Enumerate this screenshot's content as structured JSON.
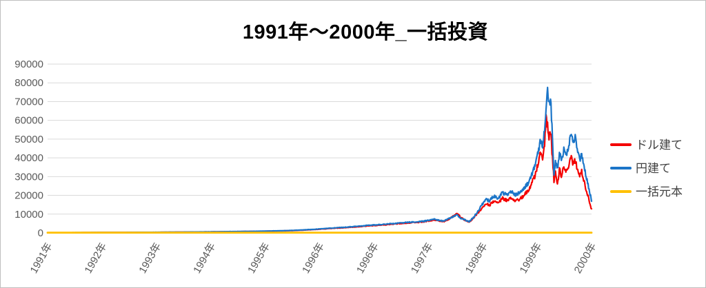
{
  "title": "1991年〜2000年_一括投資",
  "colors": {
    "background": "#FFFFFF",
    "border": "#BFBFBF",
    "gridline": "#D9D9D9",
    "axis_text": "#595959",
    "legend_text": "#404040",
    "title_text": "#000000",
    "dollar": "#F40000",
    "yen": "#1B75C8",
    "principal": "#FFC000"
  },
  "chart_data": {
    "type": "line",
    "title": "1991年〜2000年_一括投資",
    "grid": "horizontal",
    "legend_position": "right",
    "ylim": [
      0,
      90000
    ],
    "y_ticks": [
      0,
      10000,
      20000,
      30000,
      40000,
      50000,
      60000,
      70000,
      80000,
      90000
    ],
    "x_ticks": [
      "1991年",
      "1992年",
      "1993年",
      "1994年",
      "1995年",
      "1996年",
      "1996年",
      "1997年",
      "1998年",
      "1999年",
      "2000年"
    ],
    "x_is_fraction_of_range": true,
    "series": [
      {
        "id": "dollar",
        "name": "ドル建て",
        "color": "#F40000",
        "width": 2.2,
        "noise": 0.045,
        "points": [
          [
            0.0,
            120
          ],
          [
            0.01,
            150
          ],
          [
            0.02,
            100
          ],
          [
            0.035,
            160
          ],
          [
            0.05,
            140
          ],
          [
            0.07,
            180
          ],
          [
            0.09,
            200
          ],
          [
            0.11,
            220
          ],
          [
            0.13,
            240
          ],
          [
            0.15,
            265
          ],
          [
            0.17,
            290
          ],
          [
            0.19,
            310
          ],
          [
            0.21,
            350
          ],
          [
            0.23,
            385
          ],
          [
            0.25,
            420
          ],
          [
            0.27,
            470
          ],
          [
            0.29,
            520
          ],
          [
            0.31,
            570
          ],
          [
            0.33,
            640
          ],
          [
            0.35,
            700
          ],
          [
            0.37,
            780
          ],
          [
            0.39,
            850
          ],
          [
            0.41,
            950
          ],
          [
            0.43,
            1080
          ],
          [
            0.45,
            1220
          ],
          [
            0.47,
            1500
          ],
          [
            0.49,
            1780
          ],
          [
            0.5,
            1950
          ],
          [
            0.515,
            2250
          ],
          [
            0.53,
            2500
          ],
          [
            0.545,
            2750
          ],
          [
            0.56,
            3100
          ],
          [
            0.575,
            3350
          ],
          [
            0.59,
            3750
          ],
          [
            0.605,
            4000
          ],
          [
            0.62,
            4300
          ],
          [
            0.635,
            4700
          ],
          [
            0.65,
            5000
          ],
          [
            0.665,
            5400
          ],
          [
            0.68,
            5600
          ],
          [
            0.695,
            6100
          ],
          [
            0.705,
            6600
          ],
          [
            0.712,
            7000
          ],
          [
            0.72,
            6400
          ],
          [
            0.728,
            6000
          ],
          [
            0.738,
            7400
          ],
          [
            0.748,
            9200
          ],
          [
            0.753,
            10200
          ],
          [
            0.76,
            8200
          ],
          [
            0.768,
            6600
          ],
          [
            0.775,
            5600
          ],
          [
            0.783,
            7800
          ],
          [
            0.792,
            11000
          ],
          [
            0.8,
            13800
          ],
          [
            0.806,
            15800
          ],
          [
            0.812,
            14600
          ],
          [
            0.82,
            16800
          ],
          [
            0.828,
            15800
          ],
          [
            0.836,
            18500
          ],
          [
            0.844,
            17300
          ],
          [
            0.852,
            18800
          ],
          [
            0.86,
            17200
          ],
          [
            0.868,
            18000
          ],
          [
            0.875,
            19800
          ],
          [
            0.882,
            22000
          ],
          [
            0.889,
            25500
          ],
          [
            0.896,
            30500
          ],
          [
            0.902,
            37000
          ],
          [
            0.906,
            42000
          ],
          [
            0.91,
            39000
          ],
          [
            0.9135,
            47000
          ],
          [
            0.916,
            61000
          ],
          [
            0.919,
            58000
          ],
          [
            0.922,
            50000
          ],
          [
            0.9245,
            55000
          ],
          [
            0.928,
            40000
          ],
          [
            0.931,
            27500
          ],
          [
            0.934,
            33000
          ],
          [
            0.937,
            24500
          ],
          [
            0.941,
            33500
          ],
          [
            0.945,
            30500
          ],
          [
            0.949,
            35000
          ],
          [
            0.953,
            32500
          ],
          [
            0.958,
            36500
          ],
          [
            0.962,
            40000
          ],
          [
            0.966,
            37000
          ],
          [
            0.97,
            38500
          ],
          [
            0.974,
            33500
          ],
          [
            0.978,
            30000
          ],
          [
            0.982,
            33000
          ],
          [
            0.986,
            27500
          ],
          [
            0.99,
            23000
          ],
          [
            0.994,
            19000
          ],
          [
            0.997,
            15500
          ],
          [
            1.0,
            12500
          ]
        ]
      },
      {
        "id": "yen",
        "name": "円建て",
        "color": "#1B75C8",
        "width": 2.2,
        "noise": 0.045,
        "points": [
          [
            0.0,
            120
          ],
          [
            0.01,
            90
          ],
          [
            0.02,
            160
          ],
          [
            0.035,
            140
          ],
          [
            0.05,
            170
          ],
          [
            0.07,
            190
          ],
          [
            0.09,
            210
          ],
          [
            0.11,
            230
          ],
          [
            0.13,
            260
          ],
          [
            0.15,
            280
          ],
          [
            0.17,
            310
          ],
          [
            0.19,
            330
          ],
          [
            0.21,
            370
          ],
          [
            0.23,
            410
          ],
          [
            0.25,
            450
          ],
          [
            0.27,
            500
          ],
          [
            0.29,
            550
          ],
          [
            0.31,
            600
          ],
          [
            0.33,
            680
          ],
          [
            0.35,
            740
          ],
          [
            0.37,
            820
          ],
          [
            0.39,
            900
          ],
          [
            0.41,
            1000
          ],
          [
            0.43,
            1150
          ],
          [
            0.45,
            1300
          ],
          [
            0.47,
            1600
          ],
          [
            0.49,
            1900
          ],
          [
            0.5,
            2100
          ],
          [
            0.515,
            2400
          ],
          [
            0.53,
            2700
          ],
          [
            0.545,
            2950
          ],
          [
            0.56,
            3300
          ],
          [
            0.575,
            3600
          ],
          [
            0.59,
            4000
          ],
          [
            0.605,
            4300
          ],
          [
            0.62,
            4600
          ],
          [
            0.635,
            5000
          ],
          [
            0.65,
            5300
          ],
          [
            0.665,
            5700
          ],
          [
            0.68,
            5900
          ],
          [
            0.695,
            6400
          ],
          [
            0.705,
            6900
          ],
          [
            0.712,
            7300
          ],
          [
            0.72,
            6700
          ],
          [
            0.728,
            6300
          ],
          [
            0.738,
            7600
          ],
          [
            0.748,
            9000
          ],
          [
            0.753,
            9500
          ],
          [
            0.76,
            7800
          ],
          [
            0.768,
            6800
          ],
          [
            0.775,
            6000
          ],
          [
            0.783,
            8200
          ],
          [
            0.792,
            12000
          ],
          [
            0.8,
            15500
          ],
          [
            0.806,
            18200
          ],
          [
            0.812,
            16800
          ],
          [
            0.82,
            19500
          ],
          [
            0.828,
            18300
          ],
          [
            0.836,
            21500
          ],
          [
            0.844,
            20300
          ],
          [
            0.852,
            22000
          ],
          [
            0.86,
            20500
          ],
          [
            0.868,
            21500
          ],
          [
            0.875,
            23200
          ],
          [
            0.882,
            26000
          ],
          [
            0.889,
            30000
          ],
          [
            0.896,
            36000
          ],
          [
            0.902,
            43000
          ],
          [
            0.906,
            50000
          ],
          [
            0.91,
            46000
          ],
          [
            0.9135,
            55000
          ],
          [
            0.917,
            70000
          ],
          [
            0.919,
            80000
          ],
          [
            0.922,
            68000
          ],
          [
            0.9245,
            72000
          ],
          [
            0.928,
            52000
          ],
          [
            0.931,
            31000
          ],
          [
            0.934,
            38000
          ],
          [
            0.937,
            34000
          ],
          [
            0.941,
            42000
          ],
          [
            0.945,
            39000
          ],
          [
            0.949,
            44000
          ],
          [
            0.953,
            41000
          ],
          [
            0.958,
            47000
          ],
          [
            0.962,
            52500
          ],
          [
            0.966,
            48000
          ],
          [
            0.97,
            50500
          ],
          [
            0.974,
            44000
          ],
          [
            0.978,
            38500
          ],
          [
            0.982,
            42500
          ],
          [
            0.986,
            36000
          ],
          [
            0.99,
            30000
          ],
          [
            0.994,
            25000
          ],
          [
            0.997,
            21000
          ],
          [
            1.0,
            17500
          ]
        ]
      },
      {
        "id": "principal",
        "name": "一括元本",
        "color": "#FFC000",
        "width": 2.8,
        "noise": 0,
        "points": [
          [
            0.0,
            100
          ],
          [
            1.0,
            100
          ]
        ]
      }
    ]
  },
  "legend": {
    "items": [
      {
        "id": "dollar",
        "label": "ドル建て",
        "color": "#F40000"
      },
      {
        "id": "yen",
        "label": "円建て",
        "color": "#1B75C8"
      },
      {
        "id": "principal",
        "label": "一括元本",
        "color": "#FFC000"
      }
    ]
  }
}
